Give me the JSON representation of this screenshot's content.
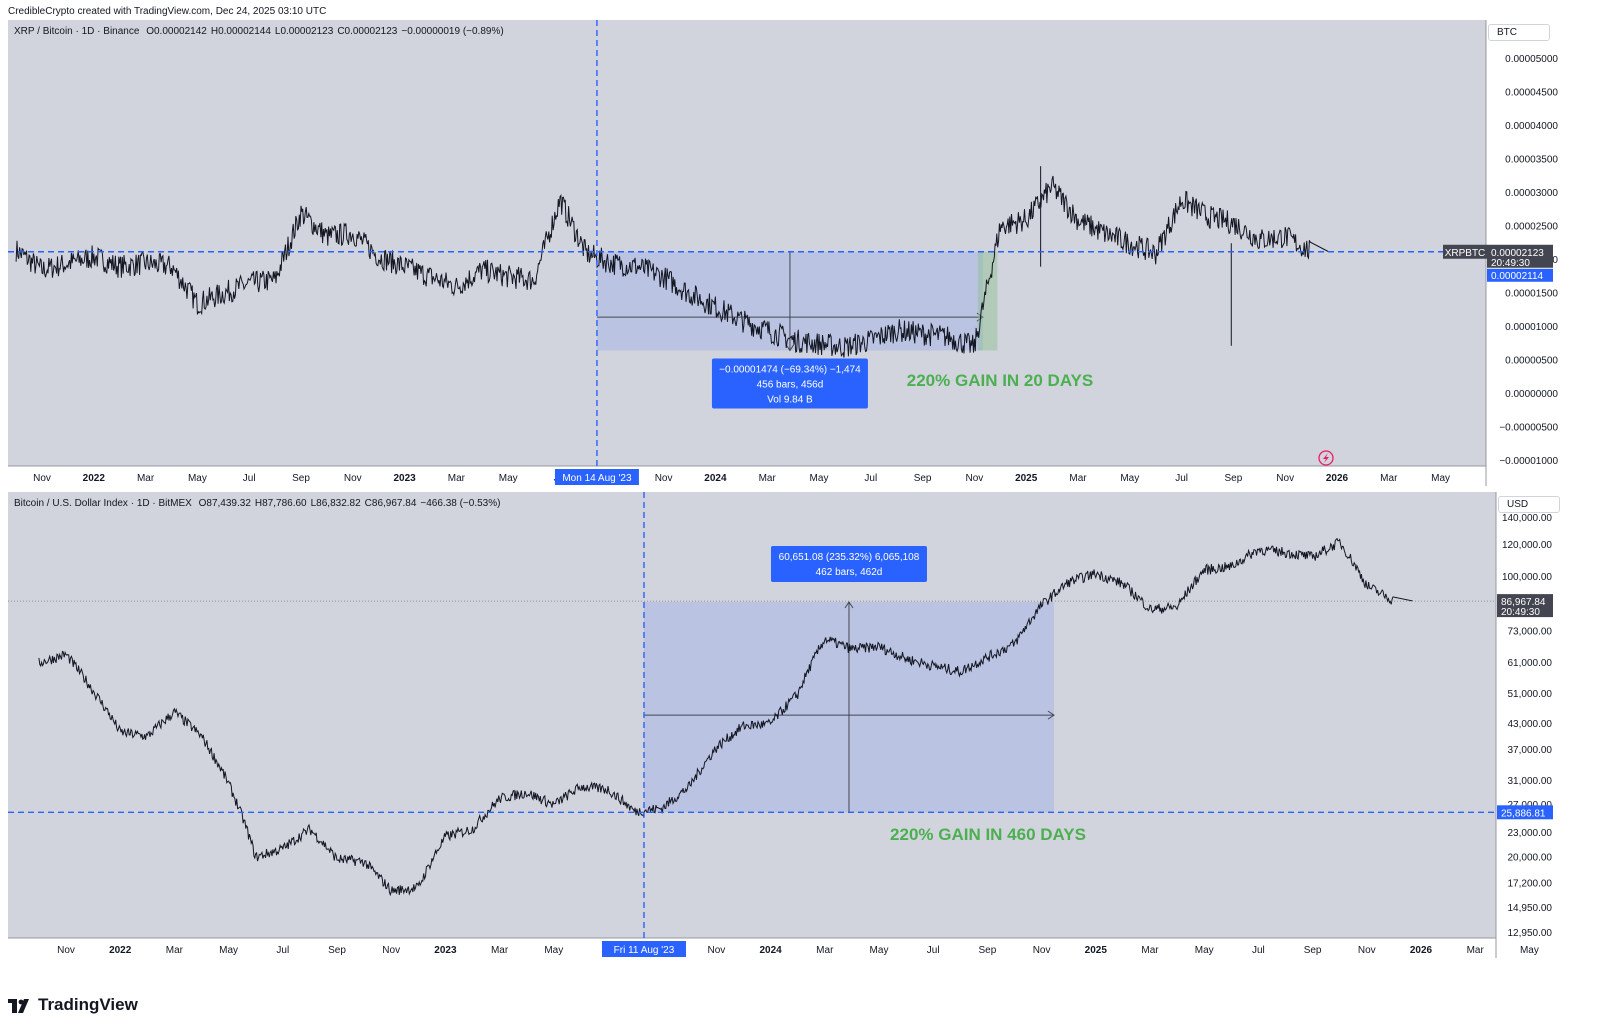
{
  "header": {
    "attribution": "CredibleCrypto created with TradingView.com, Dec 24, 2025 03:10 UTC"
  },
  "brand": {
    "name": "TradingView"
  },
  "charts": [
    {
      "id": "top",
      "symbol": "XRP / Bitcoin · 1D · Binance",
      "ohlc": [
        {
          "k": "O",
          "v": "0.00002142"
        },
        {
          "k": "H",
          "v": "0.00002144"
        },
        {
          "k": "L",
          "v": "0.00002123"
        },
        {
          "k": "C",
          "v": "0.00002123"
        },
        {
          "k": "",
          "v": "−0.00000019 (−0.89%)"
        }
      ],
      "unit": "BTC",
      "annotation": "220% GAIN IN 20 DAYS",
      "measure_box": [
        "−0.00001474 (−69.34%) −1,474",
        "456 bars, 456d",
        "Vol 9.84 B"
      ],
      "crosshair_date": "Mon 14 Aug '23",
      "price_tag_symbol": "XRPBTC",
      "price_tag_value": "0.00002123",
      "price_tag_time": "20:49:30",
      "price_tag_blue": "0.00002114",
      "lightning-icon": "lightning-icon"
    },
    {
      "id": "bottom",
      "symbol": "Bitcoin / U.S. Dollar Index · 1D · BitMEX",
      "ohlc": [
        {
          "k": "O",
          "v": "87,439.32"
        },
        {
          "k": "H",
          "v": "87,786.60"
        },
        {
          "k": "L",
          "v": "86,832.82"
        },
        {
          "k": "C",
          "v": "86,967.84"
        },
        {
          "k": "",
          "v": "−466.38 (−0.53%)"
        }
      ],
      "unit": "USD",
      "annotation": "220% GAIN IN 460 DAYS",
      "measure_box": [
        "60,651.08 (235.32%) 6,065,108",
        "462 bars, 462d"
      ],
      "crosshair_date": "Fri 11 Aug '23",
      "price_tag_value": "86,967.84",
      "price_tag_time": "20:49:30",
      "price_tag_blue": "25,886.81"
    }
  ],
  "chart_data": [
    {
      "type": "line",
      "title": "XRP / Bitcoin · 1D · Binance",
      "ylabel": "BTC",
      "y_ticks": [
        "0.00005000",
        "0.00004500",
        "0.00004000",
        "0.00003500",
        "0.00003000",
        "0.00002500",
        "0.00002000",
        "0.00001500",
        "0.00001000",
        "0.00000500",
        "0.00000000",
        "−0.00000500",
        "−0.00001000"
      ],
      "ylim": [
        -1e-05,
        5e-05
      ],
      "x_ticks": [
        "Nov",
        "2022",
        "Mar",
        "May",
        "Jul",
        "Sep",
        "Nov",
        "2023",
        "Mar",
        "May",
        "Jul",
        "Sep",
        "Nov",
        "2024",
        "Mar",
        "May",
        "Jul",
        "Sep",
        "Nov",
        "2025",
        "Mar",
        "May",
        "Jul",
        "Sep",
        "Nov",
        "2026",
        "Mar",
        "May"
      ],
      "x": [
        "2021-10",
        "2021-11",
        "2021-12",
        "2022-01",
        "2022-02",
        "2022-03",
        "2022-04",
        "2022-05",
        "2022-06",
        "2022-07",
        "2022-08",
        "2022-09",
        "2022-10",
        "2022-11",
        "2022-12",
        "2023-01",
        "2023-02",
        "2023-03",
        "2023-04",
        "2023-05",
        "2023-06",
        "2023-07",
        "2023-08",
        "2023-09",
        "2023-10",
        "2023-11",
        "2023-12",
        "2024-01",
        "2024-02",
        "2024-03",
        "2024-04",
        "2024-05",
        "2024-06",
        "2024-07",
        "2024-08",
        "2024-09",
        "2024-10",
        "2024-11",
        "2024-12",
        "2025-01",
        "2025-02",
        "2025-03",
        "2025-04",
        "2025-05",
        "2025-06",
        "2025-07",
        "2025-08",
        "2025-09",
        "2025-10",
        "2025-11",
        "2025-12"
      ],
      "series": [
        {
          "values": [
            2.15e-05,
            1.85e-05,
            1.95e-05,
            2.05e-05,
            1.9e-05,
            1.95e-05,
            1.9e-05,
            1.35e-05,
            1.5e-05,
            1.65e-05,
            1.7e-05,
            2.7e-05,
            2.35e-05,
            2.4e-05,
            2.05e-05,
            1.9e-05,
            1.75e-05,
            1.6e-05,
            1.85e-05,
            1.75e-05,
            1.7e-05,
            2.9e-05,
            2.1e-05,
            1.95e-05,
            1.9e-05,
            1.75e-05,
            1.5e-05,
            1.3e-05,
            1.1e-05,
            9.5e-06,
            8e-06,
            7.5e-06,
            7e-06,
            8e-06,
            9.5e-06,
            9e-06,
            8.5e-06,
            7e-06,
            2.5e-05,
            2.6e-05,
            3.1e-05,
            2.6e-05,
            2.4e-05,
            2.25e-05,
            2.1e-05,
            2.9e-05,
            2.65e-05,
            2.55e-05,
            2.3e-05,
            2.35e-05,
            2.12e-05
          ]
        }
      ],
      "reference_line": 2.123e-05,
      "measure_range": {
        "from": 2.123e-05,
        "to": 6.5e-06
      },
      "crosshair_x": "2023-08-14"
    },
    {
      "type": "line",
      "title": "Bitcoin / U.S. Dollar Index · 1D · BitMEX",
      "ylabel": "USD",
      "y_ticks": [
        "140,000.00",
        "120,000.00",
        "100,000.00",
        "73,000.00",
        "61,000.00",
        "51,000.00",
        "43,000.00",
        "37,000.00",
        "31,000.00",
        "27,000.00",
        "23,000.00",
        "20,000.00",
        "17,200.00",
        "14,950.00",
        "12,950.00"
      ],
      "scale": "log",
      "x_ticks": [
        "Nov",
        "2022",
        "Mar",
        "May",
        "Jul",
        "Sep",
        "Nov",
        "2023",
        "Mar",
        "May",
        "Jul",
        "Sep",
        "Nov",
        "2024",
        "Mar",
        "May",
        "Jul",
        "Sep",
        "Nov",
        "2025",
        "Mar",
        "May",
        "Jul",
        "Sep",
        "Nov",
        "2026",
        "Mar",
        "May"
      ],
      "x": [
        "2021-10",
        "2021-11",
        "2021-12",
        "2022-01",
        "2022-02",
        "2022-03",
        "2022-04",
        "2022-05",
        "2022-06",
        "2022-07",
        "2022-08",
        "2022-09",
        "2022-10",
        "2022-11",
        "2022-12",
        "2023-01",
        "2023-02",
        "2023-03",
        "2023-04",
        "2023-05",
        "2023-06",
        "2023-07",
        "2023-08",
        "2023-09",
        "2023-10",
        "2023-11",
        "2023-12",
        "2024-01",
        "2024-02",
        "2024-03",
        "2024-04",
        "2024-05",
        "2024-06",
        "2024-07",
        "2024-08",
        "2024-09",
        "2024-10",
        "2024-11",
        "2024-12",
        "2025-01",
        "2025-02",
        "2025-03",
        "2025-04",
        "2025-05",
        "2025-06",
        "2025-07",
        "2025-08",
        "2025-09",
        "2025-10",
        "2025-11",
        "2025-12"
      ],
      "series": [
        {
          "values": [
            61000,
            64000,
            52000,
            41000,
            40000,
            46000,
            40000,
            30500,
            20000,
            21000,
            23500,
            19800,
            19500,
            16500,
            16800,
            22500,
            23500,
            28000,
            29000,
            27000,
            30000,
            29500,
            26000,
            26500,
            30000,
            37500,
            42500,
            43000,
            51000,
            70000,
            66000,
            67000,
            62500,
            60000,
            58000,
            63000,
            68000,
            85000,
            97000,
            102000,
            96000,
            83000,
            84000,
            104000,
            106000,
            117000,
            115000,
            112000,
            122000,
            95000,
            87000
          ]
        }
      ],
      "reference_line": 86967.84,
      "support_line": 25886.81,
      "measure_range": {
        "from": 25886.81,
        "to": 86537.89
      },
      "crosshair_x": "2023-08-11"
    }
  ]
}
